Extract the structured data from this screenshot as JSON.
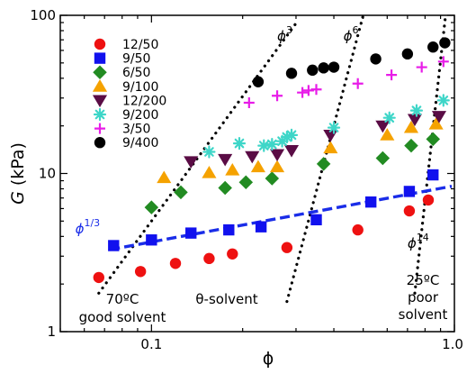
{
  "chart_data": {
    "type": "scatter",
    "xscale": "log",
    "yscale": "log",
    "xlabel": "ϕ",
    "ylabel_italic": "G",
    "ylabel_unit": " (kPa)",
    "xlim": [
      0.05,
      1.0
    ],
    "ylim": [
      1,
      100
    ],
    "xticks": [
      {
        "value": 0.1,
        "label": "0.1"
      },
      {
        "value": 1.0,
        "label": "1.0"
      }
    ],
    "yticks": [
      {
        "value": 1,
        "label": "1"
      },
      {
        "value": 10,
        "label": "10"
      },
      {
        "value": 100,
        "label": "100"
      }
    ],
    "series": [
      {
        "name": "12/50",
        "marker": "circle",
        "color": "#ee1111",
        "points": [
          [
            0.067,
            2.2
          ],
          [
            0.092,
            2.4
          ],
          [
            0.12,
            2.7
          ],
          [
            0.155,
            2.9
          ],
          [
            0.185,
            3.1
          ],
          [
            0.28,
            3.4
          ],
          [
            0.48,
            4.4
          ],
          [
            0.71,
            5.8
          ],
          [
            0.82,
            6.8
          ]
        ]
      },
      {
        "name": "9/50",
        "marker": "square",
        "color": "#1111ee",
        "points": [
          [
            0.075,
            3.5
          ],
          [
            0.1,
            3.8
          ],
          [
            0.135,
            4.2
          ],
          [
            0.18,
            4.4
          ],
          [
            0.23,
            4.6
          ],
          [
            0.35,
            5.1
          ],
          [
            0.53,
            6.6
          ],
          [
            0.71,
            7.7
          ],
          [
            0.85,
            9.8
          ]
        ]
      },
      {
        "name": "6/50",
        "marker": "diamond",
        "color": "#228b22",
        "points": [
          [
            0.1,
            6.1
          ],
          [
            0.125,
            7.6
          ],
          [
            0.175,
            8.1
          ],
          [
            0.205,
            8.8
          ],
          [
            0.25,
            9.3
          ],
          [
            0.37,
            11.5
          ],
          [
            0.58,
            12.5
          ],
          [
            0.72,
            15.0
          ],
          [
            0.85,
            16.5
          ]
        ]
      },
      {
        "name": "9/100",
        "marker": "triangle-up",
        "color": "#f5a200",
        "points": [
          [
            0.11,
            9.4
          ],
          [
            0.155,
            10.1
          ],
          [
            0.185,
            10.5
          ],
          [
            0.225,
            11.0
          ],
          [
            0.26,
            11.0
          ],
          [
            0.39,
            14.5
          ],
          [
            0.6,
            17.5
          ],
          [
            0.72,
            19.5
          ],
          [
            0.87,
            20.5
          ]
        ]
      },
      {
        "name": "12/200",
        "marker": "triangle-down",
        "color": "#5a0c45",
        "points": [
          [
            0.135,
            11.9
          ],
          [
            0.175,
            12.3
          ],
          [
            0.215,
            12.8
          ],
          [
            0.26,
            13.2
          ],
          [
            0.29,
            14.0
          ],
          [
            0.39,
            17.5
          ],
          [
            0.58,
            20.0
          ],
          [
            0.74,
            22.0
          ],
          [
            0.89,
            23.0
          ]
        ]
      },
      {
        "name": "9/200",
        "marker": "asterisk",
        "color": "#3ed6c8",
        "points": [
          [
            0.155,
            13.7
          ],
          [
            0.195,
            15.5
          ],
          [
            0.235,
            15.0
          ],
          [
            0.25,
            15.3
          ],
          [
            0.27,
            16.0
          ],
          [
            0.28,
            17.0
          ],
          [
            0.29,
            17.5
          ],
          [
            0.4,
            19.5
          ],
          [
            0.61,
            22.5
          ],
          [
            0.75,
            25.0
          ],
          [
            0.92,
            29.0
          ]
        ]
      },
      {
        "name": "3/50",
        "marker": "plus",
        "color": "#e81ce8",
        "points": [
          [
            0.21,
            28.0
          ],
          [
            0.26,
            31.0
          ],
          [
            0.315,
            32.5
          ],
          [
            0.33,
            33.5
          ],
          [
            0.35,
            34.0
          ],
          [
            0.48,
            37.0
          ],
          [
            0.62,
            42.0
          ],
          [
            0.78,
            47.0
          ],
          [
            0.92,
            51.0
          ]
        ]
      },
      {
        "name": "9/400",
        "marker": "circle",
        "color": "#000000",
        "points": [
          [
            0.225,
            38.0
          ],
          [
            0.29,
            43.0
          ],
          [
            0.34,
            45.0
          ],
          [
            0.37,
            46.5
          ],
          [
            0.4,
            47.0
          ],
          [
            0.55,
            53.0
          ],
          [
            0.7,
            57.0
          ],
          [
            0.85,
            63.0
          ],
          [
            0.93,
            67.0
          ]
        ]
      }
    ],
    "guides": [
      {
        "label": "ϕ³",
        "color": "#000000",
        "style": "dotted",
        "from": [
          0.067,
          1.75
        ],
        "to": [
          0.3,
          89.0
        ]
      },
      {
        "label": "ϕ⁶",
        "color": "#000000",
        "style": "dotted",
        "from": [
          0.28,
          1.55
        ],
        "to": [
          0.5,
          100.0
        ]
      },
      {
        "label": "ϕ¹⁴",
        "color": "#000000",
        "style": "dotted",
        "from": [
          0.74,
          1.75
        ],
        "to": [
          0.935,
          100.0
        ]
      },
      {
        "label": "ϕ¹ᐟ³",
        "color": "#1a2de8",
        "style": "dashed",
        "from": [
          0.073,
          3.3
        ],
        "to": [
          0.98,
          8.3
        ]
      }
    ],
    "annotations": [
      {
        "lines": [
          "70ºC",
          "good solvent"
        ]
      },
      {
        "lines": [
          "θ-solvent"
        ]
      },
      {
        "lines": [
          "25ºC",
          "poor",
          "solvent"
        ]
      }
    ],
    "legend_position": "top-left",
    "grid": false
  }
}
